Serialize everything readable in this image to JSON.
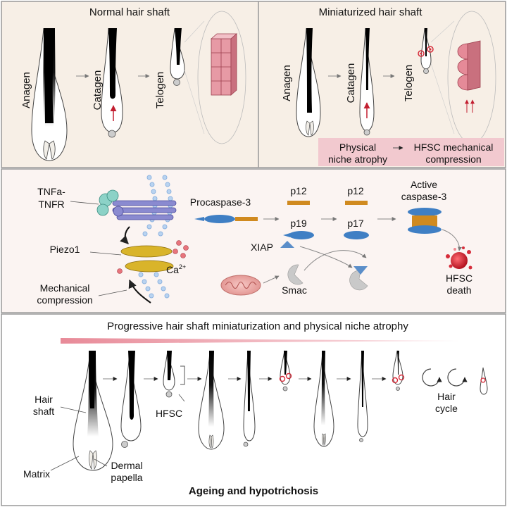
{
  "top_left": {
    "title": "Normal hair shaft",
    "stages": [
      "Anagen",
      "Catagen",
      "Telogen"
    ]
  },
  "top_right": {
    "title": "Miniaturized  hair shaft",
    "stages": [
      "Anagen",
      "Catagen",
      "Telogen"
    ],
    "label_atrophy_1": "Physical",
    "label_atrophy_2": "niche atrophy",
    "label_compression_1": "HFSC mechanical",
    "label_compression_2": "compression"
  },
  "middle": {
    "tnf_1": "TNFa-",
    "tnf_2": "TNFR",
    "piezo": "Piezo1",
    "mech_1": "Mechanical",
    "mech_2": "compression",
    "ca": "Ca",
    "ca_sup": "2+",
    "procaspase": "Procaspase-3",
    "p12_a": "p12",
    "p12_b": "p12",
    "p19": "p19",
    "p17": "p17",
    "xiap": "XIAP",
    "smac": "Smac",
    "active_1": "Active",
    "active_2": "caspase-3",
    "death_1": "HFSC",
    "death_2": "death"
  },
  "bottom": {
    "title": "Progressive hair shaft miniaturization and physical niche atrophy",
    "hair_1": "Hair",
    "hair_2": "shaft",
    "matrix": "Matrix",
    "dermal_1": "Dermal",
    "dermal_2": "papella",
    "hfsc": "HFSC",
    "cycle_1": "Hair",
    "cycle_2": "cycle",
    "footer": "Ageing and hypotrichosis"
  },
  "colors": {
    "panel_bg": "#f7efe6",
    "accent_pink": "#f2c9cf",
    "caspase_orange": "#d08a1f",
    "caspase_blue": "#3f7fc4",
    "piezo_yellow": "#d9b42a",
    "death_red": "#d62c3a"
  }
}
